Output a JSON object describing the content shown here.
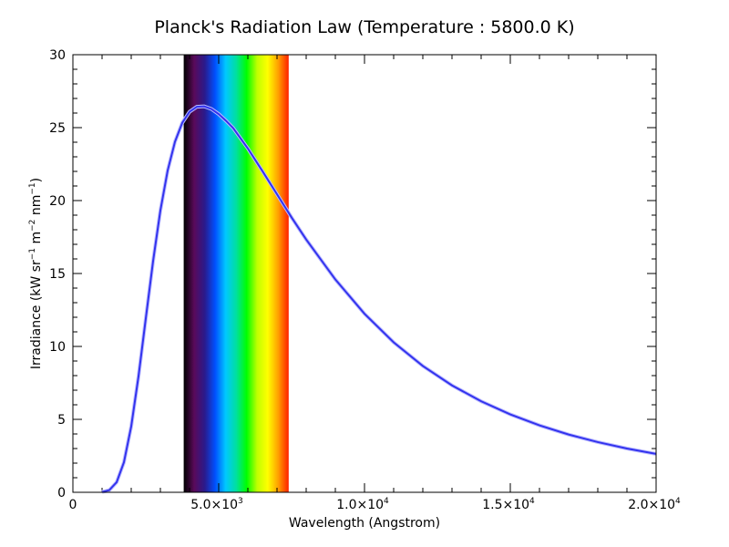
{
  "chart_data": {
    "type": "line",
    "title": "Planck's Radiation Law (Temperature : 5800.0 K)",
    "xlabel": "Wavelength (Angstrom)",
    "ylabel": {
      "base": "Irradiance (kW sr",
      "exp1": "−1",
      "m": " m",
      "exp2": "−2",
      "nm": " nm",
      "exp3": "−1",
      "close": ")"
    },
    "xlim": [
      0,
      20000
    ],
    "ylim": [
      0,
      30
    ],
    "x_ticks": [
      {
        "value": 0,
        "mantissa": "0",
        "exponent": ""
      },
      {
        "value": 5000,
        "mantissa": "5.0×10",
        "exponent": "3"
      },
      {
        "value": 10000,
        "mantissa": "1.0×10",
        "exponent": "4"
      },
      {
        "value": 15000,
        "mantissa": "1.5×10",
        "exponent": "4"
      },
      {
        "value": 20000,
        "mantissa": "2.0×10",
        "exponent": "4"
      }
    ],
    "y_ticks": [
      "0",
      "5",
      "10",
      "15",
      "20",
      "25",
      "30"
    ],
    "temperature_K": 5800.0,
    "visible_band": {
      "start": 3800,
      "end": 7400
    },
    "band_colors": [
      "#000000",
      "#5a0a5a",
      "#2a1a8c",
      "#0050ff",
      "#00c8ff",
      "#00e0a0",
      "#00ff00",
      "#c0ff00",
      "#ffff00",
      "#ffa000",
      "#ff2000"
    ],
    "series": [
      {
        "color": "#3333ee",
        "x": [
          1000,
          1250,
          1500,
          1750,
          2000,
          2250,
          2500,
          2750,
          3000,
          3250,
          3500,
          3750,
          4000,
          4250,
          4500,
          4750,
          5000,
          5250,
          5500,
          6000,
          6500,
          7000,
          7500,
          8000,
          9000,
          10000,
          11000,
          12000,
          13000,
          14000,
          15000,
          16000,
          17000,
          18000,
          19000,
          20000
        ],
        "y": [
          0.02,
          0.15,
          0.69,
          2.06,
          4.52,
          7.95,
          11.92,
          15.85,
          19.32,
          22.06,
          24.03,
          25.33,
          26.09,
          26.43,
          26.46,
          26.28,
          25.93,
          25.47,
          24.96,
          23.57,
          22.02,
          20.43,
          18.84,
          17.33,
          14.59,
          12.24,
          10.28,
          8.66,
          7.33,
          6.24,
          5.34,
          4.59,
          3.96,
          3.44,
          3.0,
          2.63
        ]
      }
    ]
  }
}
